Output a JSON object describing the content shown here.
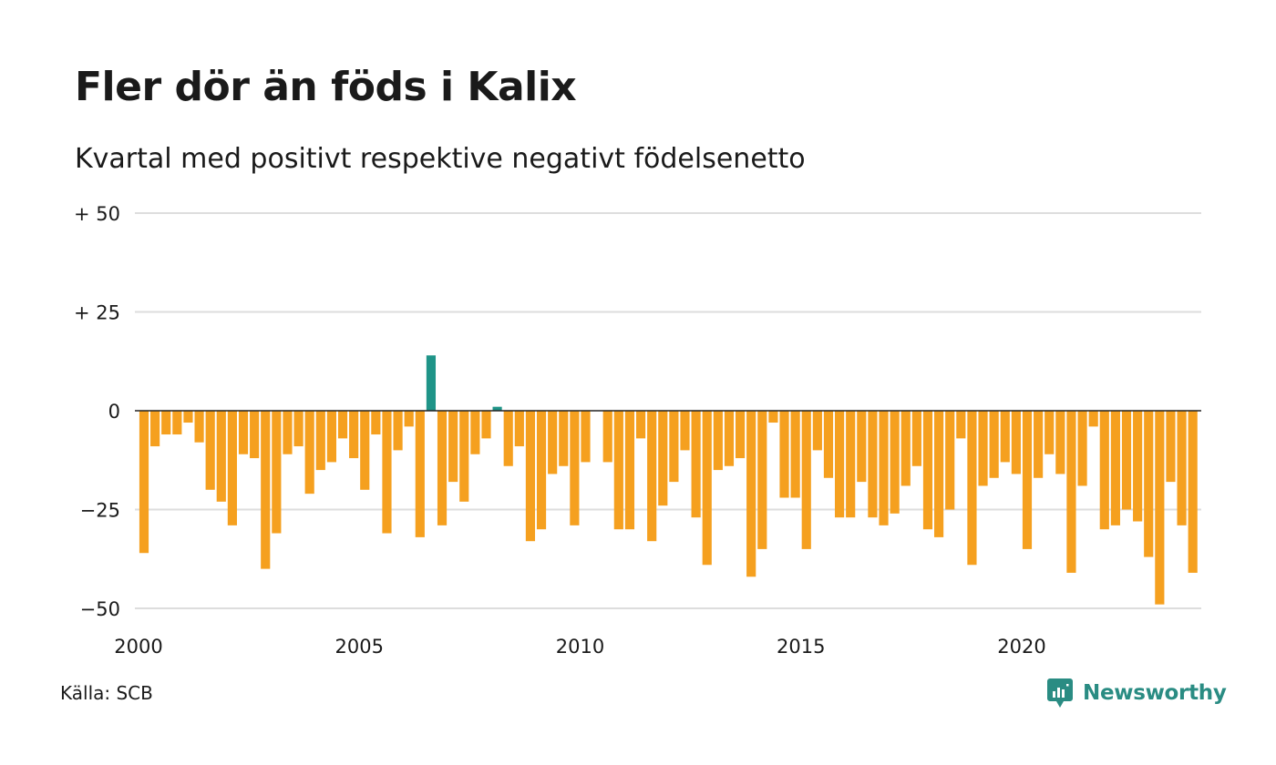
{
  "title": "Fler dör än föds i Kalix",
  "subtitle": "Kvartal med positivt respektive negativt födelsenetto",
  "source": "Källa: SCB",
  "brand": "Newsworthy",
  "colors": {
    "positive": "#1f9488",
    "negative": "#f5a01f",
    "gridline": "#dddddd",
    "zeroline": "#222222",
    "brand": "#2a8c83"
  },
  "chart_data": {
    "type": "bar",
    "ylim": [
      -50,
      50
    ],
    "yticks": [
      {
        "value": 50,
        "label": "+ 50"
      },
      {
        "value": 25,
        "label": "+ 25"
      },
      {
        "value": 0,
        "label": "0"
      },
      {
        "value": -25,
        "label": "−25"
      },
      {
        "value": -50,
        "label": "−50"
      }
    ],
    "xticks": [
      {
        "year": 2000,
        "label": "2000"
      },
      {
        "year": 2005,
        "label": "2005"
      },
      {
        "year": 2010,
        "label": "2010"
      },
      {
        "year": 2015,
        "label": "2015"
      },
      {
        "year": 2020,
        "label": "2020"
      }
    ],
    "grid": true,
    "legend": "none",
    "series": [
      {
        "start_year": 2000,
        "start_quarter": 1,
        "values": [
          -36,
          -9,
          -6,
          -6,
          -3,
          -8,
          -20,
          -23,
          -29,
          -11,
          -12,
          -40,
          -31,
          -11,
          -9,
          -21,
          -15,
          -13,
          -7,
          -12,
          -20,
          -6,
          -31,
          -10,
          -4,
          -32,
          14,
          -29,
          -18,
          -23,
          -11,
          -7,
          1,
          -14,
          -9,
          -33,
          -30,
          -16,
          -14,
          -29,
          -13,
          0,
          -13,
          -30,
          -30,
          -7,
          -33,
          -24,
          -18,
          -10,
          -27,
          -39,
          -15,
          -14,
          -12,
          -42,
          -35,
          -3,
          -22,
          -22,
          -35,
          -10,
          -17,
          -27,
          -27,
          -18,
          -27,
          -29,
          -26,
          -19,
          -14,
          -30,
          -32,
          -25,
          -7,
          -39,
          -19,
          -17,
          -13,
          -16,
          -35,
          -17,
          -11,
          -16,
          -41,
          -19,
          -4,
          -30,
          -29,
          -25,
          -28,
          -37,
          -49,
          -18,
          -29,
          -41
        ]
      }
    ]
  }
}
